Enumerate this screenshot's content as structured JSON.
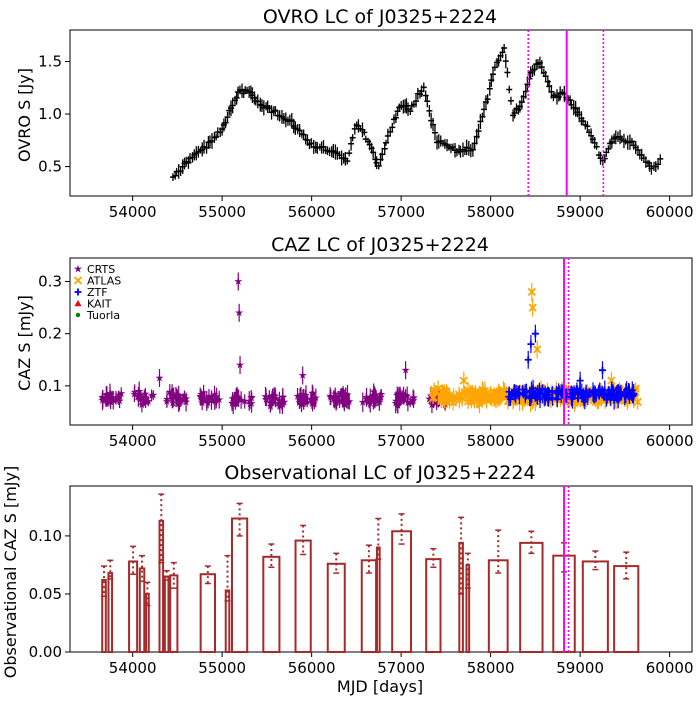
{
  "chart_data": [
    {
      "type": "scatter",
      "title": "OVRO LC of J0325+2224",
      "ylabel": "OVRO S [Jy]",
      "xlabel": "",
      "xlim": [
        53300,
        60250
      ],
      "ylim": [
        0.22,
        1.8
      ],
      "xticks": [
        "54000",
        "55000",
        "56000",
        "57000",
        "58000",
        "59000",
        "60000"
      ],
      "yticks": [
        "0.5",
        "1.0",
        "1.5"
      ],
      "ytick_values": [
        0.5,
        1.0,
        1.5
      ],
      "marker": "plus-errorbar",
      "color": "#000000",
      "anchors": [
        [
          54450,
          0.38
        ],
        [
          54600,
          0.55
        ],
        [
          54800,
          0.68
        ],
        [
          55000,
          0.85
        ],
        [
          55100,
          1.05
        ],
        [
          55200,
          1.22
        ],
        [
          55300,
          1.22
        ],
        [
          55400,
          1.1
        ],
        [
          55600,
          1.02
        ],
        [
          55800,
          0.9
        ],
        [
          56000,
          0.7
        ],
        [
          56200,
          0.65
        ],
        [
          56400,
          0.55
        ],
        [
          56500,
          0.92
        ],
        [
          56650,
          0.72
        ],
        [
          56750,
          0.5
        ],
        [
          56900,
          0.9
        ],
        [
          57000,
          1.1
        ],
        [
          57100,
          1.05
        ],
        [
          57250,
          1.25
        ],
        [
          57400,
          0.75
        ],
        [
          57600,
          0.66
        ],
        [
          57800,
          0.67
        ],
        [
          57950,
          1.1
        ],
        [
          58050,
          1.45
        ],
        [
          58150,
          1.62
        ],
        [
          58250,
          1.0
        ],
        [
          58350,
          1.1
        ],
        [
          58450,
          1.4
        ],
        [
          58550,
          1.5
        ],
        [
          58700,
          1.15
        ],
        [
          58800,
          1.2
        ],
        [
          58950,
          1.05
        ],
        [
          59100,
          0.85
        ],
        [
          59250,
          0.55
        ],
        [
          59400,
          0.8
        ],
        [
          59600,
          0.7
        ],
        [
          59800,
          0.48
        ],
        [
          59920,
          0.58
        ]
      ],
      "vlines": [
        {
          "x": 58420,
          "style": "dotted",
          "color": "#ff00ff"
        },
        {
          "x": 58850,
          "style": "solid",
          "color": "#ff00ff"
        },
        {
          "x": 59260,
          "style": "dotted",
          "color": "#ff00ff"
        }
      ]
    },
    {
      "type": "scatter",
      "title": "CAZ LC of J0325+2224",
      "ylabel": "CAZ S [mJy]",
      "xlabel": "",
      "xlim": [
        53300,
        60250
      ],
      "ylim": [
        0.025,
        0.345
      ],
      "xticks": [
        "54000",
        "55000",
        "56000",
        "57000",
        "58000",
        "59000",
        "60000"
      ],
      "yticks": [
        "0.1",
        "0.2",
        "0.3"
      ],
      "ytick_values": [
        0.1,
        0.2,
        0.3
      ],
      "legend": [
        {
          "label": "CRTS",
          "color": "#800080",
          "marker": "star"
        },
        {
          "label": "ATLAS",
          "color": "#ffa500",
          "marker": "x"
        },
        {
          "label": "ZTF",
          "color": "#0000ff",
          "marker": "plus"
        },
        {
          "label": "KAIT",
          "color": "#ff0000",
          "marker": "triangle"
        },
        {
          "label": "Tuorla",
          "color": "#008000",
          "marker": "dot"
        }
      ],
      "legend_position": "top-left",
      "series": [
        {
          "name": "CRTS",
          "color": "#800080",
          "x_range": [
            53650,
            57500
          ],
          "mean": 0.075,
          "extra_points": [
            [
              55180,
              0.3
            ],
            [
              55190,
              0.24
            ],
            [
              55200,
              0.14
            ],
            [
              54300,
              0.115
            ],
            [
              55900,
              0.12
            ],
            [
              57050,
              0.13
            ]
          ]
        },
        {
          "name": "ATLAS",
          "color": "#ffa500",
          "x_range": [
            57350,
            59650
          ],
          "mean": 0.08,
          "extra_points": [
            [
              58460,
              0.28
            ],
            [
              58470,
              0.25
            ],
            [
              58520,
              0.17
            ],
            [
              57700,
              0.11
            ],
            [
              59350,
              0.11
            ]
          ]
        },
        {
          "name": "ZTF",
          "color": "#0000ff",
          "x_range": [
            58200,
            59600
          ],
          "mean": 0.085,
          "extra_points": [
            [
              58500,
              0.2
            ],
            [
              58450,
              0.18
            ],
            [
              58420,
              0.15
            ],
            [
              59000,
              0.11
            ],
            [
              59250,
              0.13
            ]
          ]
        }
      ],
      "vlines": [
        {
          "x": 58820,
          "style": "solid",
          "color": "#ff00ff"
        },
        {
          "x": 58870,
          "style": "dotted",
          "color": "#ff00ff"
        }
      ]
    },
    {
      "type": "bar",
      "title": "Observational LC of J0325+2224",
      "ylabel": "Observational CAZ S [mJy]",
      "xlabel": "MJD [days]",
      "xlim": [
        53300,
        60250
      ],
      "ylim": [
        0.0,
        0.143
      ],
      "xticks": [
        "54000",
        "55000",
        "56000",
        "57000",
        "58000",
        "59000",
        "60000"
      ],
      "yticks": [
        "0.00",
        "0.05",
        "0.10"
      ],
      "ytick_values": [
        0.0,
        0.05,
        0.1
      ],
      "color": "#a52a2a",
      "bars": [
        {
          "x0": 53660,
          "x1": 53700,
          "value": 0.062,
          "err_lo": 0.048,
          "err_hi": 0.074
        },
        {
          "x0": 53730,
          "x1": 53770,
          "value": 0.068,
          "err_lo": 0.063,
          "err_hi": 0.079
        },
        {
          "x0": 53960,
          "x1": 54050,
          "value": 0.078,
          "err_lo": 0.067,
          "err_hi": 0.091
        },
        {
          "x0": 54080,
          "x1": 54130,
          "value": 0.072,
          "err_lo": 0.061,
          "err_hi": 0.083
        },
        {
          "x0": 54150,
          "x1": 54180,
          "value": 0.05,
          "err_lo": 0.04,
          "err_hi": 0.06
        },
        {
          "x0": 54300,
          "x1": 54340,
          "value": 0.113,
          "err_lo": 0.077,
          "err_hi": 0.136
        },
        {
          "x0": 54360,
          "x1": 54400,
          "value": 0.065,
          "err_lo": 0.062,
          "err_hi": 0.07
        },
        {
          "x0": 54420,
          "x1": 54500,
          "value": 0.066,
          "err_lo": 0.055,
          "err_hi": 0.077
        },
        {
          "x0": 54760,
          "x1": 54920,
          "value": 0.067,
          "err_lo": 0.059,
          "err_hi": 0.074
        },
        {
          "x0": 55040,
          "x1": 55080,
          "value": 0.053,
          "err_lo": 0.044,
          "err_hi": 0.083
        },
        {
          "x0": 55110,
          "x1": 55280,
          "value": 0.115,
          "err_lo": 0.1,
          "err_hi": 0.128
        },
        {
          "x0": 55460,
          "x1": 55640,
          "value": 0.082,
          "err_lo": 0.073,
          "err_hi": 0.093
        },
        {
          "x0": 55820,
          "x1": 55990,
          "value": 0.096,
          "err_lo": 0.084,
          "err_hi": 0.109
        },
        {
          "x0": 56180,
          "x1": 56370,
          "value": 0.076,
          "err_lo": 0.068,
          "err_hi": 0.085
        },
        {
          "x0": 56560,
          "x1": 56720,
          "value": 0.079,
          "err_lo": 0.068,
          "err_hi": 0.092
        },
        {
          "x0": 56730,
          "x1": 56760,
          "value": 0.09,
          "err_lo": 0.08,
          "err_hi": 0.115
        },
        {
          "x0": 56900,
          "x1": 57110,
          "value": 0.104,
          "err_lo": 0.093,
          "err_hi": 0.119
        },
        {
          "x0": 57280,
          "x1": 57440,
          "value": 0.08,
          "err_lo": 0.073,
          "err_hi": 0.089
        },
        {
          "x0": 57650,
          "x1": 57690,
          "value": 0.094,
          "err_lo": 0.05,
          "err_hi": 0.116
        },
        {
          "x0": 57730,
          "x1": 57760,
          "value": 0.075,
          "err_lo": 0.055,
          "err_hi": 0.085
        },
        {
          "x0": 57980,
          "x1": 58190,
          "value": 0.079,
          "err_lo": 0.068,
          "err_hi": 0.105
        },
        {
          "x0": 58330,
          "x1": 58580,
          "value": 0.094,
          "err_lo": 0.085,
          "err_hi": 0.104
        },
        {
          "x0": 58700,
          "x1": 58940,
          "value": 0.083,
          "err_lo": 0.069,
          "err_hi": 0.094
        },
        {
          "x0": 59030,
          "x1": 59310,
          "value": 0.078,
          "err_lo": 0.071,
          "err_hi": 0.087
        },
        {
          "x0": 59380,
          "x1": 59650,
          "value": 0.074,
          "err_lo": 0.063,
          "err_hi": 0.086
        }
      ],
      "vlines": [
        {
          "x": 58820,
          "style": "solid",
          "color": "#ff00ff"
        },
        {
          "x": 58870,
          "style": "dotted",
          "color": "#ff00ff"
        }
      ]
    }
  ]
}
